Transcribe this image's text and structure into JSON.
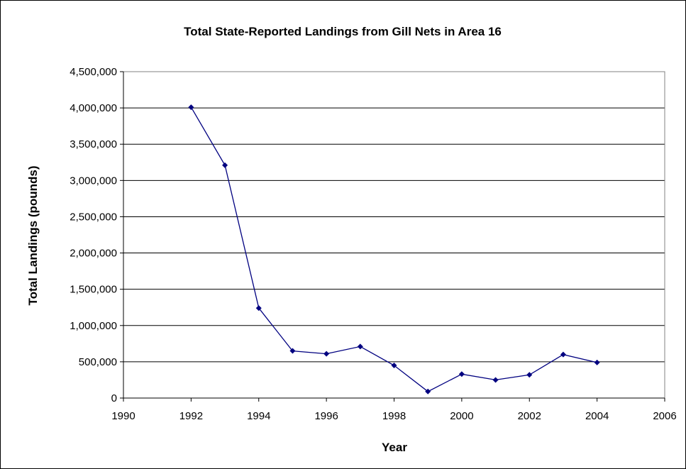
{
  "chart_data": {
    "type": "scatter",
    "title": "Total State-Reported Landings from Gill Nets in Area 16",
    "xlabel": "Year",
    "ylabel": "Total Landings (pounds)",
    "xlim": [
      1990,
      2006
    ],
    "ylim": [
      0,
      4500000
    ],
    "x_ticks": [
      1990,
      1992,
      1994,
      1996,
      1998,
      2000,
      2002,
      2004,
      2006
    ],
    "x_tick_labels": [
      "1990",
      "1992",
      "1994",
      "1996",
      "1998",
      "2000",
      "2002",
      "2004",
      "2006"
    ],
    "y_ticks": [
      0,
      500000,
      1000000,
      1500000,
      2000000,
      2500000,
      3000000,
      3500000,
      4000000,
      4500000
    ],
    "y_tick_labels": [
      "0",
      "500,000",
      "1,000,000",
      "1,500,000",
      "2,000,000",
      "2,500,000",
      "3,000,000",
      "3,500,000",
      "4,000,000",
      "4,500,000"
    ],
    "grid": "horizontal",
    "legend": "none",
    "series_color": "#000080",
    "series": [
      {
        "x": [
          1992,
          1993,
          1994,
          1995,
          1996,
          1997,
          1998,
          1999,
          2000,
          2001,
          2002,
          2003,
          2004
        ],
        "y": [
          4010000,
          3210000,
          1240000,
          650000,
          610000,
          710000,
          450000,
          90000,
          330000,
          250000,
          320000,
          600000,
          490000
        ]
      }
    ]
  }
}
